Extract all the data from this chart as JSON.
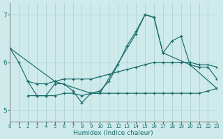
{
  "xlabel": "Humidex (Indice chaleur)",
  "bg_color": "#ceeaea",
  "grid_color": "#aacece",
  "line_color": "#1a6b6b",
  "xlim": [
    0,
    23
  ],
  "ylim": [
    4.75,
    7.25
  ],
  "yticks": [
    5,
    6,
    7
  ],
  "xticks": [
    0,
    1,
    2,
    3,
    4,
    5,
    6,
    7,
    8,
    9,
    10,
    11,
    12,
    13,
    14,
    15,
    16,
    17,
    18,
    19,
    20,
    21,
    22,
    23
  ],
  "series_zigzag_x": [
    0,
    1,
    2,
    3,
    4,
    5,
    6,
    7,
    8,
    9,
    10,
    11,
    12,
    13,
    14,
    15,
    16,
    17,
    18,
    19,
    20,
    21,
    22,
    23
  ],
  "series_zigzag_y": [
    6.3,
    6.0,
    5.6,
    5.3,
    5.3,
    5.55,
    5.55,
    5.4,
    5.15,
    5.35,
    5.4,
    5.6,
    5.95,
    6.35,
    6.65,
    7.0,
    6.95,
    6.2,
    6.45,
    6.55,
    5.95,
    5.9,
    5.9,
    5.65
  ],
  "series_flat_x": [
    2,
    3,
    4,
    5,
    6,
    7,
    8,
    9,
    10,
    11,
    12,
    13,
    14,
    15,
    16,
    17,
    18,
    19,
    20,
    21,
    22,
    23
  ],
  "series_flat_y": [
    5.3,
    5.3,
    5.3,
    5.3,
    5.35,
    5.35,
    5.3,
    5.35,
    5.35,
    5.35,
    5.35,
    5.35,
    5.35,
    5.35,
    5.35,
    5.35,
    5.35,
    5.35,
    5.35,
    5.35,
    5.4,
    5.45
  ],
  "series_rise_x": [
    2,
    3,
    4,
    5,
    6,
    7,
    8,
    9,
    10,
    11,
    12,
    13,
    14,
    15,
    16,
    17,
    18,
    19,
    20,
    21,
    22,
    23
  ],
  "series_rise_y": [
    5.6,
    5.55,
    5.55,
    5.6,
    5.65,
    5.65,
    5.65,
    5.65,
    5.7,
    5.75,
    5.8,
    5.85,
    5.9,
    5.95,
    6.0,
    6.0,
    6.0,
    6.0,
    6.0,
    5.95,
    5.95,
    5.9
  ],
  "series_diag_x": [
    0,
    5,
    9,
    10,
    14,
    15,
    16,
    17,
    20,
    23
  ],
  "series_diag_y": [
    6.3,
    5.6,
    5.35,
    5.35,
    6.6,
    7.0,
    6.95,
    6.2,
    5.95,
    5.45
  ]
}
